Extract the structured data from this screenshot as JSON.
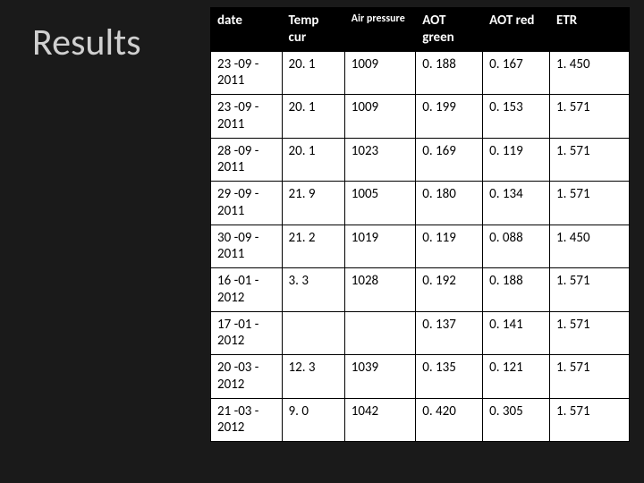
{
  "title": "Results",
  "table": {
    "columns": [
      "date",
      "Temp cur",
      "Air pressure",
      "AOT green",
      "AOT red",
      "ETR"
    ],
    "column_header_small": [
      false,
      false,
      true,
      false,
      false,
      false
    ],
    "rows": [
      [
        "23 -09 - 2011",
        "20. 1",
        "1009",
        "0. 188",
        "0. 167",
        "1. 450"
      ],
      [
        "23 -09 - 2011",
        "20. 1",
        "1009",
        "0. 199",
        "0. 153",
        "1. 571"
      ],
      [
        "28 -09 - 2011",
        "20. 1",
        "1023",
        "0. 169",
        "0. 119",
        "1. 571"
      ],
      [
        "29 -09 - 2011",
        "21. 9",
        "1005",
        "0. 180",
        "0. 134",
        "1. 571"
      ],
      [
        "30 -09 - 2011",
        "21. 2",
        "1019",
        "0. 119",
        "0. 088",
        "1. 450"
      ],
      [
        "16 -01 - 2012",
        "3. 3",
        "1028",
        "0. 192",
        "0. 188",
        "1. 571"
      ],
      [
        "17 -01 - 2012",
        "",
        "",
        "0. 137",
        "0. 141",
        "1. 571"
      ],
      [
        "20 -03 - 2012",
        "12. 3",
        "1039",
        "0. 135",
        "0. 121",
        "1. 571"
      ],
      [
        "21 -03 - 2012",
        "9. 0",
        "1042",
        "0. 420",
        "0. 305",
        "1. 571"
      ]
    ],
    "header_bg": "#000000",
    "header_fg": "#ffffff",
    "cell_bg": "#ffffff",
    "cell_fg": "#000000",
    "border_color": "#000000"
  },
  "colors": {
    "page_bg": "#1a1a1a",
    "title_color": "#d0d0d0"
  }
}
